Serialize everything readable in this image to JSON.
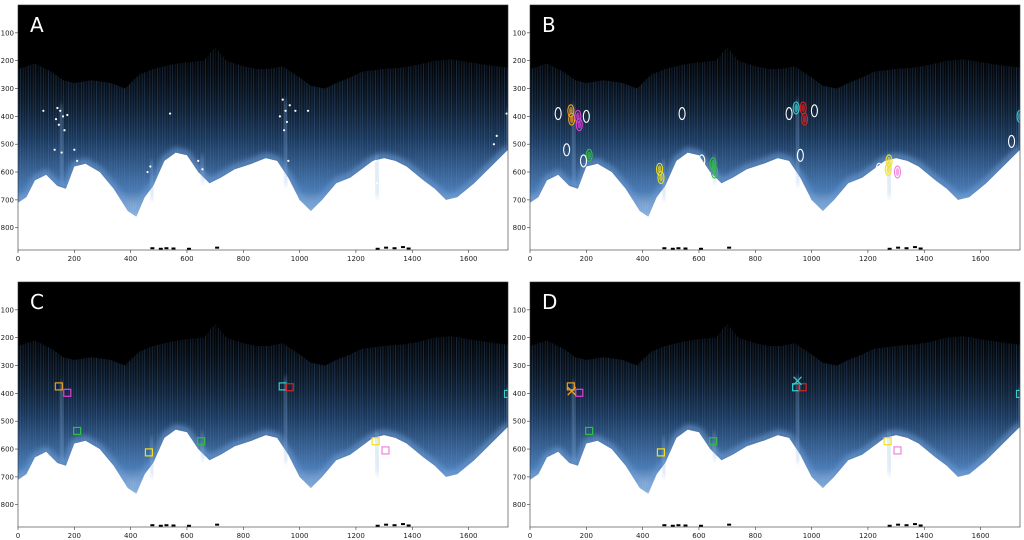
{
  "panels": [
    {
      "label": "A",
      "marker_type": "dots"
    },
    {
      "label": "B",
      "marker_type": "ellipses"
    },
    {
      "label": "C",
      "marker_type": "squares"
    },
    {
      "label": "D",
      "marker_type": "squares-and-crosses"
    }
  ],
  "axes": {
    "x_ticks": [
      "0",
      "200",
      "400",
      "600",
      "800",
      "1000",
      "1200",
      "1400",
      "1600"
    ],
    "y_ticks": [
      "100",
      "200",
      "300",
      "400",
      "500",
      "600",
      "700",
      "800"
    ],
    "x_range": [
      0,
      1740
    ],
    "y_range": [
      0,
      880
    ]
  },
  "colors": {
    "background": "#ffffff",
    "sky": "#000000",
    "signal": "#4a7bb5",
    "orange": "#f0a020",
    "magenta": "#e040e0",
    "green": "#30c040",
    "cyan": "#30d0d0",
    "red": "#e02020",
    "yellow": "#f0e020",
    "pink": "#f080e0"
  },
  "markers": {
    "squares_c": [
      {
        "x": 145,
        "y": 375,
        "color": "orange"
      },
      {
        "x": 175,
        "y": 398,
        "color": "magenta"
      },
      {
        "x": 210,
        "y": 535,
        "color": "green"
      },
      {
        "x": 465,
        "y": 612,
        "color": "yellow"
      },
      {
        "x": 650,
        "y": 572,
        "color": "green"
      },
      {
        "x": 940,
        "y": 375,
        "color": "cyan"
      },
      {
        "x": 965,
        "y": 378,
        "color": "red"
      },
      {
        "x": 1270,
        "y": 572,
        "color": "yellow"
      },
      {
        "x": 1305,
        "y": 605,
        "color": "pink"
      },
      {
        "x": 1740,
        "y": 402,
        "color": "cyan"
      }
    ],
    "squares_d": [
      {
        "x": 145,
        "y": 375,
        "color": "orange"
      },
      {
        "x": 175,
        "y": 398,
        "color": "magenta"
      },
      {
        "x": 210,
        "y": 535,
        "color": "green"
      },
      {
        "x": 465,
        "y": 612,
        "color": "yellow"
      },
      {
        "x": 650,
        "y": 572,
        "color": "green"
      },
      {
        "x": 945,
        "y": 378,
        "color": "cyan"
      },
      {
        "x": 968,
        "y": 378,
        "color": "red"
      },
      {
        "x": 1270,
        "y": 572,
        "color": "yellow"
      },
      {
        "x": 1305,
        "y": 605,
        "color": "pink"
      },
      {
        "x": 1740,
        "y": 402,
        "color": "cyan"
      }
    ],
    "crosses_d": [
      {
        "x": 148,
        "y": 392,
        "color": "orange"
      },
      {
        "x": 950,
        "y": 355,
        "color": "cyan"
      }
    ],
    "dots_a": [
      {
        "x": 140,
        "y": 370
      },
      {
        "x": 150,
        "y": 380
      },
      {
        "x": 135,
        "y": 410
      },
      {
        "x": 160,
        "y": 400
      },
      {
        "x": 145,
        "y": 430
      },
      {
        "x": 175,
        "y": 395
      },
      {
        "x": 165,
        "y": 450
      },
      {
        "x": 130,
        "y": 520
      },
      {
        "x": 155,
        "y": 530
      },
      {
        "x": 200,
        "y": 520
      },
      {
        "x": 90,
        "y": 380
      },
      {
        "x": 210,
        "y": 560
      },
      {
        "x": 470,
        "y": 580
      },
      {
        "x": 460,
        "y": 600
      },
      {
        "x": 540,
        "y": 390
      },
      {
        "x": 640,
        "y": 560
      },
      {
        "x": 655,
        "y": 590
      },
      {
        "x": 630,
        "y": 610
      },
      {
        "x": 940,
        "y": 340
      },
      {
        "x": 950,
        "y": 380
      },
      {
        "x": 955,
        "y": 420
      },
      {
        "x": 930,
        "y": 400
      },
      {
        "x": 965,
        "y": 360
      },
      {
        "x": 945,
        "y": 450
      },
      {
        "x": 985,
        "y": 380
      },
      {
        "x": 960,
        "y": 560
      },
      {
        "x": 965,
        "y": 640
      },
      {
        "x": 1030,
        "y": 380
      },
      {
        "x": 1270,
        "y": 560
      },
      {
        "x": 1265,
        "y": 600
      },
      {
        "x": 1275,
        "y": 640
      },
      {
        "x": 1700,
        "y": 470
      },
      {
        "x": 1735,
        "y": 390
      },
      {
        "x": 1690,
        "y": 500
      }
    ],
    "ellipses_b": [
      {
        "x": 145,
        "y": 380,
        "color": "orange"
      },
      {
        "x": 148,
        "y": 410,
        "color": "orange"
      },
      {
        "x": 170,
        "y": 400,
        "color": "magenta"
      },
      {
        "x": 175,
        "y": 430,
        "color": "magenta"
      },
      {
        "x": 210,
        "y": 540,
        "color": "green"
      },
      {
        "x": 460,
        "y": 590,
        "color": "yellow"
      },
      {
        "x": 465,
        "y": 620,
        "color": "yellow"
      },
      {
        "x": 650,
        "y": 570,
        "color": "green"
      },
      {
        "x": 655,
        "y": 600,
        "color": "green"
      },
      {
        "x": 945,
        "y": 370,
        "color": "cyan"
      },
      {
        "x": 970,
        "y": 370,
        "color": "red"
      },
      {
        "x": 975,
        "y": 410,
        "color": "red"
      },
      {
        "x": 1275,
        "y": 560,
        "color": "yellow"
      },
      {
        "x": 1272,
        "y": 590,
        "color": "yellow"
      },
      {
        "x": 1305,
        "y": 600,
        "color": "pink"
      },
      {
        "x": 1740,
        "y": 400,
        "color": "cyan"
      },
      {
        "x": 100,
        "y": 390,
        "color": "white"
      },
      {
        "x": 130,
        "y": 520,
        "color": "white"
      },
      {
        "x": 190,
        "y": 560,
        "color": "white"
      },
      {
        "x": 540,
        "y": 390,
        "color": "white"
      },
      {
        "x": 610,
        "y": 560,
        "color": "white"
      },
      {
        "x": 920,
        "y": 390,
        "color": "white"
      },
      {
        "x": 1010,
        "y": 380,
        "color": "white"
      },
      {
        "x": 960,
        "y": 540,
        "color": "white"
      },
      {
        "x": 1240,
        "y": 590,
        "color": "white"
      },
      {
        "x": 1710,
        "y": 490,
        "color": "white"
      },
      {
        "x": 200,
        "y": 400,
        "color": "white"
      },
      {
        "x": 600,
        "y": 620,
        "color": "white"
      }
    ]
  }
}
